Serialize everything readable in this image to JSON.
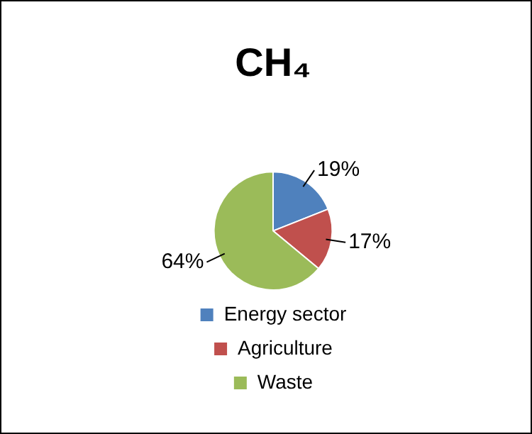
{
  "chart_data": {
    "type": "pie",
    "title": "CH₄",
    "categories": [
      "Energy sector",
      "Agriculture",
      "Waste"
    ],
    "values": [
      19,
      17,
      64
    ],
    "value_labels": [
      "19%",
      "17%",
      "64%"
    ],
    "colors": [
      "#4f81bd",
      "#c0504d",
      "#9bbb59"
    ],
    "legend": "bottom"
  }
}
